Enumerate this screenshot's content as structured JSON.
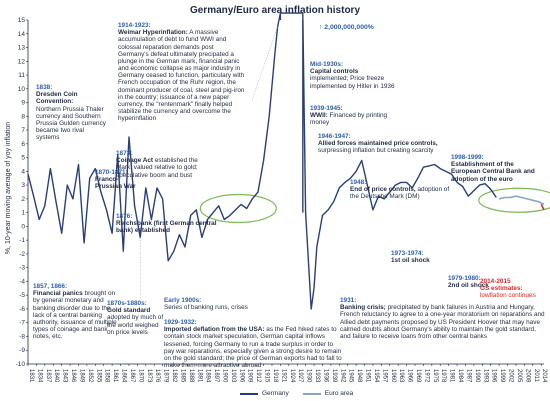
{
  "chart_data": {
    "type": "line",
    "title": "Germany/Euro area inflation history",
    "ylabel": "%, 10-year moving average of yoy inflation",
    "yticks": [
      -10,
      -9,
      -8,
      -7,
      -6,
      -5,
      -4,
      -3,
      -2,
      -1,
      0,
      1,
      2,
      3,
      4,
      5,
      6,
      7,
      8,
      9,
      10,
      11,
      12,
      13,
      14,
      15
    ],
    "ylim": [
      -10,
      15
    ],
    "xlim": [
      1831,
      2015
    ],
    "xticks": [
      "1831",
      "1834",
      "1837",
      "1840",
      "1843",
      "1846",
      "1849",
      "1852",
      "1855",
      "1858",
      "1861",
      "1864",
      "1867",
      "1870",
      "1873",
      "1876",
      "1879",
      "1882",
      "1885",
      "1888",
      "1891",
      "1894",
      "1897",
      "1900",
      "1903",
      "1906",
      "1909",
      "1912",
      "1915",
      "1918",
      "1921",
      "1924",
      "1927",
      "1930",
      "1933",
      "1936",
      "1939",
      "1942",
      "1945",
      "1948",
      "1951",
      "1954",
      "1957",
      "1960",
      "1963",
      "1966",
      "1969",
      "1972",
      "1975",
      "1978",
      "1981",
      "1984",
      "1987",
      "1990",
      "1993",
      "1996",
      "1999",
      "2002",
      "2005",
      "2008",
      "2011",
      "2014"
    ],
    "upper_arrow_label": "2,000,000,000%",
    "series": [
      {
        "name": "Germany",
        "color": "#2a3f7a",
        "x": [
          1831,
          1833,
          1835,
          1837,
          1839,
          1841,
          1843,
          1845,
          1847,
          1849,
          1851,
          1853,
          1855,
          1857,
          1859,
          1861,
          1863,
          1865,
          1867,
          1869,
          1871,
          1873,
          1875,
          1877,
          1879,
          1881,
          1883,
          1885,
          1887,
          1889,
          1891,
          1893,
          1895,
          1897,
          1899,
          1901,
          1903,
          1905,
          1907,
          1909,
          1911,
          1913,
          1915,
          1917,
          1919,
          1920,
          1921,
          1922,
          1929,
          1930,
          1931,
          1932,
          1933,
          1934,
          1936,
          1938,
          1940,
          1942,
          1944,
          1946,
          1948,
          1950,
          1952,
          1954,
          1956,
          1958,
          1960,
          1962,
          1964,
          1966,
          1968,
          1970,
          1972,
          1974,
          1976,
          1978,
          1980,
          1982,
          1984,
          1986,
          1988,
          1990,
          1992,
          1994,
          1996,
          1998
        ],
        "y": [
          3.8,
          2.2,
          0.5,
          1.5,
          4.2,
          1.8,
          -0.5,
          3.0,
          2.0,
          4.5,
          -1.2,
          3.5,
          4.2,
          2.5,
          1.2,
          -0.5,
          5.2,
          -1.8,
          6.5,
          1.5,
          -0.8,
          2.8,
          0.5,
          2.8,
          2.0,
          -2.5,
          -1.8,
          -0.6,
          -1.5,
          0.8,
          1.2,
          -0.8,
          0.5,
          1.0,
          1.5,
          0.5,
          0.8,
          1.2,
          1.6,
          1.3,
          2.0,
          2.5,
          4.8,
          8.0,
          12.5,
          14.5,
          15.5,
          15.5,
          15.5,
          1.0,
          -2.5,
          -6.0,
          -4.5,
          -1.5,
          0.8,
          1.2,
          1.8,
          2.8,
          3.2,
          3.5,
          4.0,
          4.8,
          3.0,
          1.2,
          2.2,
          2.0,
          2.5,
          3.0,
          3.2,
          3.2,
          2.8,
          3.5,
          4.3,
          4.4,
          4.5,
          4.2,
          4.0,
          3.8,
          3.2,
          2.9,
          2.2,
          2.6,
          3.0,
          3.1,
          2.7,
          2.1
        ]
      },
      {
        "name": "Euro area",
        "color": "#8aa2c9",
        "x": [
          1999,
          2001,
          2003,
          2005,
          2007,
          2009,
          2011,
          2013,
          2015
        ],
        "y": [
          2.0,
          2.1,
          2.1,
          2.2,
          2.1,
          2.0,
          1.9,
          1.8,
          1.6
        ]
      }
    ],
    "forecast": {
      "x": [
        2014,
        2015
      ],
      "y": [
        1.6,
        1.2
      ],
      "color": "#d62d2d"
    },
    "annotations": [
      {
        "key": "a1838",
        "head": "1838:",
        "head_color": "blue",
        "title": "Dresden Coin Convention:",
        "body": "Northern Prussia Thaler currency and Southern Prussia Gulden currency became two rival systems"
      },
      {
        "key": "a1857",
        "head": "1857, 1866:",
        "head_color": "blue",
        "title": "Financial panics",
        "body": "brought on by general monetary and banking disorder due to the lack of a central banking authority, issuance of multiple types of coinage and bank notes, etc."
      },
      {
        "key": "a1870",
        "head": "1870-1871:",
        "head_color": "blue",
        "title": "Franco-Prussian War",
        "body": ""
      },
      {
        "key": "a1873",
        "head": "1873:",
        "head_color": "blue",
        "title": "Coinage Act",
        "body": "established the Mark, valued relative to gold; speculative boom and bust"
      },
      {
        "key": "a1876",
        "head": "1876:",
        "head_color": "blue",
        "title": "Reichsbank (first German central bank) established",
        "body": ""
      },
      {
        "key": "a1870s",
        "head": "1870s-1880s:",
        "head_color": "blue",
        "title": "Gold standard",
        "body": "adopted by much of the world weighed on price levels"
      },
      {
        "key": "a1900",
        "head": "Early 1900s:",
        "head_color": "blue",
        "title": "",
        "body": "Series of banking runs, crises"
      },
      {
        "key": "a1914",
        "head": "1914-1923:",
        "head_color": "blue",
        "title": "Weimar Hyperinflation:",
        "body": "A massive accumulation of debt to fund WWI and colossal reparation demands post Germany's defeat ultimately precipated a plunge in the German mark, financial panic and economic collapse as major industry in Germany ceased to function, particulary with French occupation of the Ruhr region, the dominant producer of coal, steel and pig-iron in the country; issuance of a new paper currency, the \"rentenmark\" finally helped stabilize the currency and overcome the hyperinflation"
      },
      {
        "key": "a1929",
        "head": "1929-1932:",
        "head_color": "blue",
        "title": "Imported deflation from the USA:",
        "body": "as the Fed hiked rates to contain stock market speculation, German capital inflows lessened, forcing Germany to run a trade surplus in order to pay war reparations, especially given a strong desire to remain on the gold standard; the price of German exports had to fall to make them more attractive abroad"
      },
      {
        "key": "a1930s",
        "head": "Mid-1930s:",
        "head_color": "blue",
        "title": "Capital controls",
        "body": "implemented; Price freeze implemented by Hitler in 1936"
      },
      {
        "key": "a1939",
        "head": "1939-1945:",
        "head_color": "blue",
        "title": "WWII:",
        "body": "Financed by printing money"
      },
      {
        "key": "a1946",
        "head": "1946-1947:",
        "head_color": "blue",
        "title": "Allied forces maintained price controls,",
        "body": "surpressing inflation but creating scarcity"
      },
      {
        "key": "a1948",
        "head": "1948:",
        "head_color": "blue",
        "title": "End of price controls,",
        "body": "adoption of the Deutsche Mark (DM)"
      },
      {
        "key": "a1931",
        "head": "1931:",
        "head_color": "blue",
        "title": "Banking crisis;",
        "body": "precipitated by bank failures in Austria and Hungary, French reluctancy to agree to a one-year moratorium on reparations and Allied debt payments proposed by US President Hoover that may have calmed doubts about Germany's ability to maintain the gold standard, and failure to receive loans from other central banks"
      },
      {
        "key": "a1973",
        "head": "1973-1974:",
        "head_color": "blue",
        "title": "1st oil shock",
        "body": ""
      },
      {
        "key": "a1979",
        "head": "1979-1980:",
        "head_color": "blue",
        "title": "2nd oil shock",
        "body": ""
      },
      {
        "key": "a1998",
        "head": "1998-1999:",
        "head_color": "blue",
        "title": "Establishment of the European Central Bank and adoption of the euro",
        "body": ""
      },
      {
        "key": "a2014",
        "head": "2014-2015",
        "head_color": "red",
        "title": "GS estimates:",
        "body": "lowflation continues"
      }
    ],
    "legend": [
      "Germany",
      "Euro area"
    ],
    "legend_placement": "bottom-center",
    "grid": false
  }
}
